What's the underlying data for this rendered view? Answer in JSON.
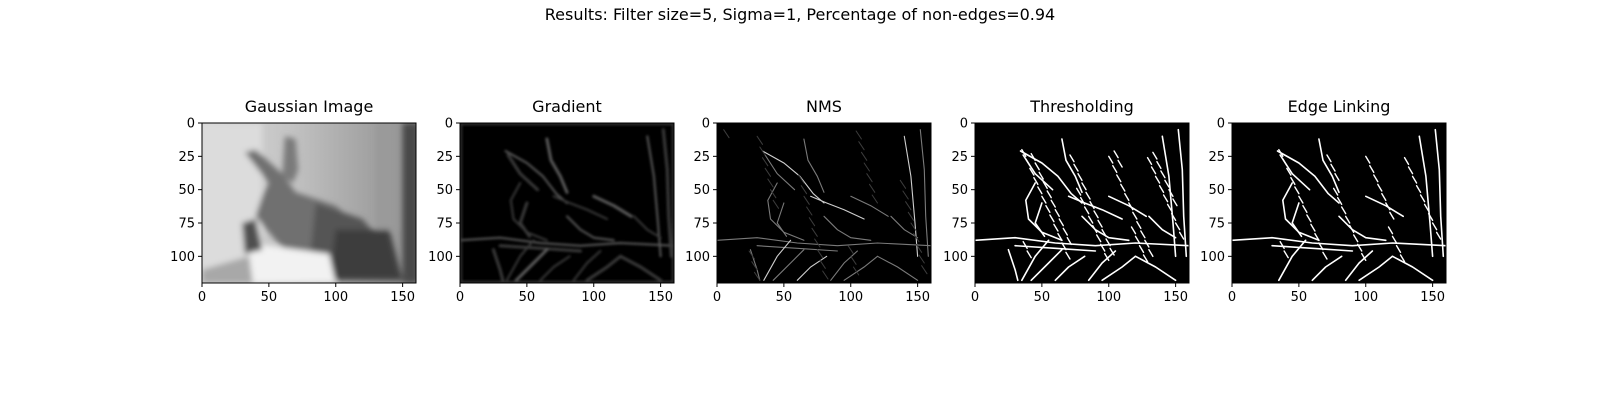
{
  "figure": {
    "suptitle": "Results: Filter size=5, Sigma=1, Percentage of non-edges=0.94"
  },
  "axes": {
    "x_range": [
      0,
      160
    ],
    "y_range": [
      0,
      120
    ],
    "xticks": [
      0,
      50,
      100,
      150
    ],
    "yticks": [
      0,
      25,
      50,
      75,
      100
    ]
  },
  "panels": [
    {
      "id": "gaussian",
      "title": "Gaussian Image",
      "content": "blurred grayscale photo of a hand making a gun gesture"
    },
    {
      "id": "gradient",
      "title": "Gradient",
      "content": "gradient magnitude map"
    },
    {
      "id": "nms",
      "title": "NMS",
      "content": "thin faint edge map"
    },
    {
      "id": "thresholding",
      "title": "Thresholding",
      "content": "binary edge map"
    },
    {
      "id": "edge-linking",
      "title": "Edge Linking",
      "content": "linked binary edge map"
    }
  ]
}
